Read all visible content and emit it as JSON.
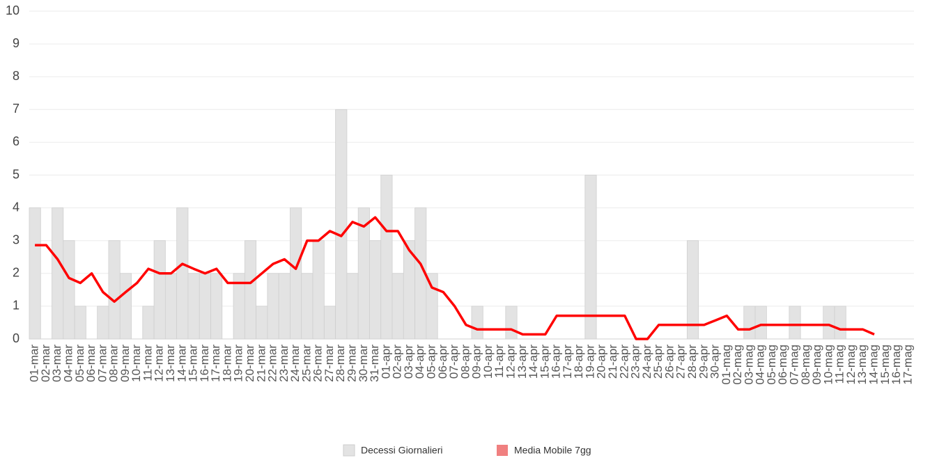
{
  "chart_data": {
    "type": "bar-line",
    "categories": [
      "01-mar",
      "02-mar",
      "03-mar",
      "04-mar",
      "05-mar",
      "06-mar",
      "07-mar",
      "08-mar",
      "09-mar",
      "10-mar",
      "11-mar",
      "12-mar",
      "13-mar",
      "14-mar",
      "15-mar",
      "16-mar",
      "17-mar",
      "18-mar",
      "19-mar",
      "20-mar",
      "21-mar",
      "22-mar",
      "23-mar",
      "24-mar",
      "25-mar",
      "26-mar",
      "27-mar",
      "28-mar",
      "29-mar",
      "30-mar",
      "31-mar",
      "01-apr",
      "02-apr",
      "03-apr",
      "04-apr",
      "05-apr",
      "06-apr",
      "07-apr",
      "08-apr",
      "09-apr",
      "10-apr",
      "11-apr",
      "12-apr",
      "13-apr",
      "14-apr",
      "15-apr",
      "16-apr",
      "17-apr",
      "18-apr",
      "19-apr",
      "20-apr",
      "21-apr",
      "22-apr",
      "23-apr",
      "24-apr",
      "25-apr",
      "26-apr",
      "27-apr",
      "28-apr",
      "29-apr",
      "30-apr",
      "01-mag",
      "02-mag",
      "03-mag",
      "04-mag",
      "05-mag",
      "06-mag",
      "07-mag",
      "08-mag",
      "09-mag",
      "10-mag",
      "11-mag",
      "12-mag",
      "13-mag",
      "14-mag",
      "15-mag",
      "16-mag",
      "17-mag"
    ],
    "series": [
      {
        "name": "Decessi Giornalieri",
        "type": "bar",
        "color": "#e3e3e3",
        "values": [
          4,
          0,
          4,
          3,
          1,
          0,
          1,
          3,
          2,
          0,
          1,
          3,
          2,
          4,
          2,
          2,
          2,
          0,
          2,
          3,
          1,
          2,
          2,
          4,
          2,
          3,
          1,
          7,
          2,
          4,
          3,
          5,
          2,
          3,
          4,
          2,
          0,
          0,
          0,
          1,
          0,
          0,
          1,
          0,
          0,
          0,
          0,
          0,
          0,
          5,
          0,
          0,
          0,
          0,
          0,
          0,
          0,
          0,
          3,
          0,
          0,
          0,
          0,
          1,
          1,
          0,
          0,
          1,
          0,
          0,
          1,
          1,
          0,
          0,
          0,
          0,
          0,
          0
        ]
      },
      {
        "name": "Media Mobile 7gg",
        "type": "line",
        "color": "#ff0000",
        "values": [
          2.86,
          2.86,
          2.43,
          1.86,
          1.71,
          2.0,
          1.43,
          1.14,
          1.43,
          1.71,
          2.14,
          2.0,
          2.0,
          2.29,
          2.14,
          2.0,
          2.14,
          1.71,
          1.71,
          1.71,
          2.0,
          2.29,
          2.43,
          2.14,
          3.0,
          3.0,
          3.29,
          3.14,
          3.57,
          3.43,
          3.71,
          3.29,
          3.29,
          2.71,
          2.29,
          1.57,
          1.43,
          1.0,
          0.43,
          0.29,
          0.29,
          0.29,
          0.29,
          0.14,
          0.14,
          0.14,
          0.71,
          0.71,
          0.71,
          0.71,
          0.71,
          0.71,
          0.71,
          0,
          0,
          0.43,
          0.43,
          0.43,
          0.43,
          0.43,
          0.57,
          0.71,
          0.29,
          0.29,
          0.43,
          0.43,
          0.43,
          0.43,
          0.43,
          0.43,
          0.43,
          0.29,
          0.29,
          0.29,
          0.14,
          null,
          null,
          null
        ]
      }
    ],
    "ylim": [
      0,
      10
    ],
    "yticks": [
      0,
      1,
      2,
      3,
      4,
      5,
      6,
      7,
      8,
      9,
      10
    ],
    "grid": true,
    "legend": "bottom"
  }
}
